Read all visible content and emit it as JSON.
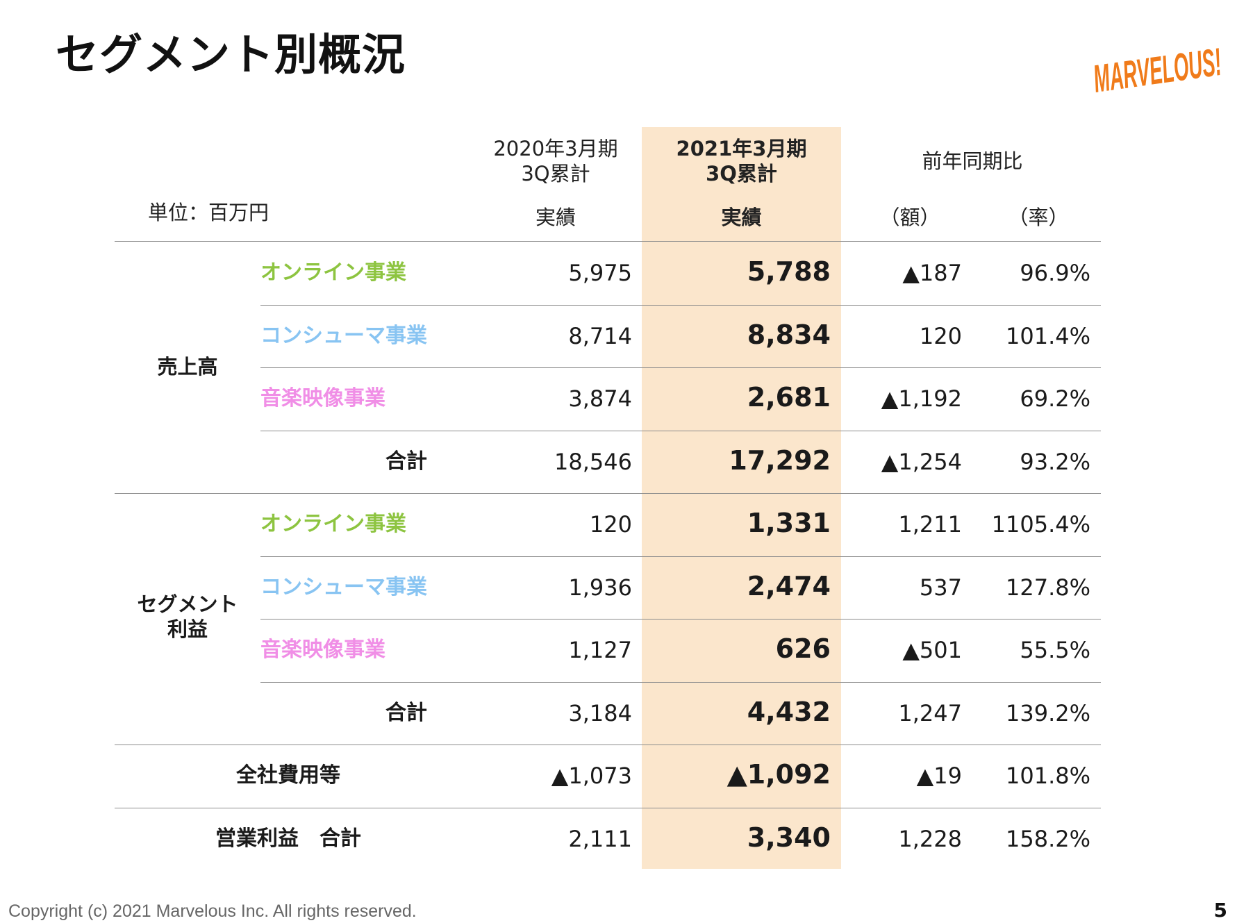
{
  "title": "セグメント別概況",
  "logo": {
    "text": "MARVELOUS!",
    "color": "#f07b1a"
  },
  "unit_label": "単位：百万円",
  "headers": {
    "prev_period": [
      "2020年3月期",
      "3Q累計"
    ],
    "curr_period": [
      "2021年3月期",
      "3Q累計"
    ],
    "prev_sub": "実績",
    "curr_sub": "実績",
    "yoy": "前年同期比",
    "yoy_amount": "（額）",
    "yoy_rate": "（率）"
  },
  "colors": {
    "online": "#8dc440",
    "consumer": "#88c4f2",
    "music": "#f08ee6",
    "highlight": "#fbe6cc"
  },
  "groups": {
    "sales": "売上高",
    "segment_profit": [
      "セグメント",
      "利益"
    ]
  },
  "rows": [
    {
      "label": "オンライン事業",
      "type": "online",
      "prev": "5,975",
      "curr": "5,788",
      "diff": "▲187",
      "rate": "96.9%"
    },
    {
      "label": "コンシューマ事業",
      "type": "consumer",
      "prev": "8,714",
      "curr": "8,834",
      "diff": "120",
      "rate": "101.4%"
    },
    {
      "label": "音楽映像事業",
      "type": "music",
      "prev": "3,874",
      "curr": "2,681",
      "diff": "▲1,192",
      "rate": "69.2%"
    },
    {
      "label": "合計",
      "type": "total",
      "prev": "18,546",
      "curr": "17,292",
      "diff": "▲1,254",
      "rate": "93.2%"
    },
    {
      "label": "オンライン事業",
      "type": "online",
      "prev": "120",
      "curr": "1,331",
      "diff": "1,211",
      "rate": "1105.4%"
    },
    {
      "label": "コンシューマ事業",
      "type": "consumer",
      "prev": "1,936",
      "curr": "2,474",
      "diff": "537",
      "rate": "127.8%"
    },
    {
      "label": "音楽映像事業",
      "type": "music",
      "prev": "1,127",
      "curr": "626",
      "diff": "▲501",
      "rate": "55.5%"
    },
    {
      "label": "合計",
      "type": "total",
      "prev": "3,184",
      "curr": "4,432",
      "diff": "1,247",
      "rate": "139.2%"
    },
    {
      "label": "全社費用等",
      "type": "wide",
      "prev": "▲1,073",
      "curr": "▲1,092",
      "diff": "▲19",
      "rate": "101.8%"
    },
    {
      "label": "営業利益　合計",
      "type": "wide",
      "prev": "2,111",
      "curr": "3,340",
      "diff": "1,228",
      "rate": "158.2%"
    }
  ],
  "footer": "Copyright (c) 2021 Marvelous Inc. All rights reserved.",
  "page_number": "5"
}
